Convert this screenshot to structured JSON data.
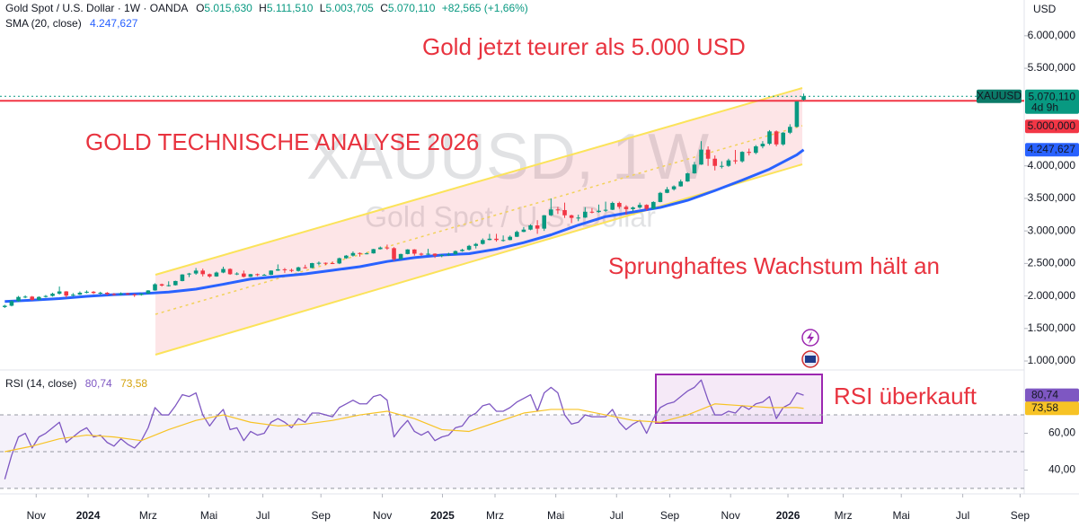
{
  "chart_data": {
    "type": "candlestick",
    "header": {
      "symbol": "Gold Spot / U.S. Dollar · 1W · OANDA",
      "ohlc": [
        {
          "key": "O",
          "value": "5.015,630"
        },
        {
          "key": "H",
          "value": "5.111,510"
        },
        {
          "key": "L",
          "value": "5.003,705"
        },
        {
          "key": "C",
          "value": "5.070,110"
        }
      ],
      "change": "+82,565 (+1,66%)"
    },
    "currency": "USD",
    "watermark": [
      "XAUUSD, 1W",
      "Gold Spot / U.S. Dollar"
    ],
    "annotations": [
      "Gold jetzt teurer als 5.000 USD",
      "GOLD TECHNISCHE ANALYSE 2026",
      "Sprunghaftes Wachstum hält an",
      "RSI überkauft"
    ],
    "up_color": "#089981",
    "down_color": "#f23645",
    "candles": [
      [
        1830,
        1865,
        1815,
        1850
      ],
      [
        1850,
        1935,
        1840,
        1920
      ],
      [
        1920,
        2000,
        1910,
        1985
      ],
      [
        1985,
        2010,
        1965,
        1990
      ],
      [
        1990,
        2000,
        1930,
        1940
      ],
      [
        1940,
        1995,
        1930,
        1985
      ],
      [
        1985,
        2015,
        1975,
        2000
      ],
      [
        2000,
        2050,
        1990,
        2035
      ],
      [
        2035,
        2145,
        2020,
        2070
      ],
      [
        2070,
        2075,
        1975,
        2005
      ],
      [
        2005,
        2045,
        1995,
        2020
      ],
      [
        2020,
        2070,
        2015,
        2050
      ],
      [
        2050,
        2085,
        2040,
        2065
      ],
      [
        2065,
        2075,
        2030,
        2045
      ],
      [
        2045,
        2065,
        2015,
        2050
      ],
      [
        2050,
        2060,
        2010,
        2030
      ],
      [
        2030,
        2045,
        2005,
        2020
      ],
      [
        2020,
        2055,
        2010,
        2040
      ],
      [
        2040,
        2050,
        2015,
        2025
      ],
      [
        2025,
        2035,
        1985,
        2015
      ],
      [
        2015,
        2045,
        2005,
        2035
      ],
      [
        2035,
        2090,
        2030,
        2085
      ],
      [
        2085,
        2195,
        2080,
        2180
      ],
      [
        2180,
        2190,
        2145,
        2160
      ],
      [
        2160,
        2225,
        2145,
        2165
      ],
      [
        2165,
        2235,
        2160,
        2230
      ],
      [
        2230,
        2335,
        2225,
        2330
      ],
      [
        2330,
        2355,
        2290,
        2345
      ],
      [
        2345,
        2430,
        2325,
        2390
      ],
      [
        2390,
        2420,
        2300,
        2335
      ],
      [
        2335,
        2345,
        2280,
        2300
      ],
      [
        2300,
        2375,
        2295,
        2360
      ],
      [
        2360,
        2450,
        2350,
        2415
      ],
      [
        2415,
        2425,
        2325,
        2335
      ],
      [
        2335,
        2365,
        2320,
        2345
      ],
      [
        2345,
        2390,
        2285,
        2295
      ],
      [
        2295,
        2340,
        2290,
        2335
      ],
      [
        2335,
        2345,
        2305,
        2320
      ],
      [
        2320,
        2340,
        2315,
        2325
      ],
      [
        2325,
        2395,
        2320,
        2390
      ],
      [
        2390,
        2485,
        2385,
        2410
      ],
      [
        2410,
        2430,
        2355,
        2400
      ],
      [
        2400,
        2420,
        2365,
        2385
      ],
      [
        2385,
        2450,
        2375,
        2440
      ],
      [
        2440,
        2480,
        2420,
        2430
      ],
      [
        2430,
        2510,
        2425,
        2505
      ],
      [
        2505,
        2530,
        2470,
        2510
      ],
      [
        2510,
        2515,
        2475,
        2505
      ],
      [
        2505,
        2530,
        2490,
        2500
      ],
      [
        2500,
        2590,
        2490,
        2580
      ],
      [
        2580,
        2630,
        2570,
        2620
      ],
      [
        2620,
        2685,
        2605,
        2660
      ],
      [
        2660,
        2670,
        2605,
        2655
      ],
      [
        2655,
        2670,
        2640,
        2655
      ],
      [
        2655,
        2725,
        2650,
        2720
      ],
      [
        2720,
        2760,
        2715,
        2745
      ],
      [
        2745,
        2790,
        2710,
        2735
      ],
      [
        2735,
        2750,
        2540,
        2565
      ],
      [
        2565,
        2650,
        2560,
        2645
      ],
      [
        2645,
        2720,
        2640,
        2715
      ],
      [
        2715,
        2720,
        2620,
        2650
      ],
      [
        2650,
        2665,
        2615,
        2635
      ],
      [
        2635,
        2725,
        2630,
        2650
      ],
      [
        2650,
        2655,
        2585,
        2620
      ],
      [
        2620,
        2640,
        2595,
        2630
      ],
      [
        2630,
        2665,
        2615,
        2640
      ],
      [
        2640,
        2700,
        2635,
        2690
      ],
      [
        2690,
        2725,
        2680,
        2710
      ],
      [
        2710,
        2785,
        2700,
        2770
      ],
      [
        2770,
        2815,
        2730,
        2800
      ],
      [
        2800,
        2885,
        2790,
        2860
      ],
      [
        2860,
        2955,
        2855,
        2880
      ],
      [
        2880,
        2955,
        2835,
        2860
      ],
      [
        2860,
        2930,
        2835,
        2860
      ],
      [
        2860,
        2930,
        2855,
        2910
      ],
      [
        2910,
        3005,
        2905,
        2985
      ],
      [
        2985,
        3060,
        2980,
        3020
      ],
      [
        3020,
        3100,
        3010,
        3085
      ],
      [
        3085,
        3165,
        2955,
        3035
      ],
      [
        3035,
        3245,
        3000,
        3240
      ],
      [
        3240,
        3500,
        3230,
        3330
      ],
      [
        3330,
        3370,
        3260,
        3320
      ],
      [
        3320,
        3435,
        3200,
        3240
      ],
      [
        3240,
        3250,
        3120,
        3200
      ],
      [
        3200,
        3250,
        3150,
        3205
      ],
      [
        3205,
        3365,
        3200,
        3295
      ],
      [
        3295,
        3350,
        3270,
        3290
      ],
      [
        3290,
        3405,
        3280,
        3310
      ],
      [
        3310,
        3450,
        3290,
        3325
      ],
      [
        3325,
        3450,
        3320,
        3430
      ],
      [
        3430,
        3450,
        3340,
        3370
      ],
      [
        3370,
        3395,
        3250,
        3335
      ],
      [
        3335,
        3375,
        3300,
        3360
      ],
      [
        3360,
        3435,
        3340,
        3400
      ],
      [
        3400,
        3410,
        3310,
        3340
      ],
      [
        3340,
        3455,
        3335,
        3445
      ],
      [
        3445,
        3600,
        3440,
        3585
      ],
      [
        3585,
        3675,
        3580,
        3640
      ],
      [
        3640,
        3700,
        3620,
        3685
      ],
      [
        3685,
        3790,
        3680,
        3760
      ],
      [
        3760,
        3895,
        3755,
        3885
      ],
      [
        3885,
        4060,
        3880,
        4020
      ],
      [
        4020,
        4380,
        4015,
        4250
      ],
      [
        4250,
        4300,
        4000,
        4110
      ],
      [
        4110,
        4160,
        3930,
        4000
      ],
      [
        4000,
        4070,
        3960,
        4000
      ],
      [
        4000,
        4110,
        3985,
        4085
      ],
      [
        4085,
        4245,
        4030,
        4070
      ],
      [
        4070,
        4225,
        4050,
        4215
      ],
      [
        4215,
        4265,
        4160,
        4200
      ],
      [
        4200,
        4320,
        4180,
        4300
      ],
      [
        4300,
        4380,
        4270,
        4340
      ],
      [
        4340,
        4550,
        4320,
        4530
      ],
      [
        4530,
        4545,
        4300,
        4330
      ],
      [
        4330,
        4520,
        4310,
        4510
      ],
      [
        4510,
        4640,
        4490,
        4600
      ],
      [
        4600,
        4990,
        4590,
        4990
      ],
      [
        5015.63,
        5111.51,
        5003.705,
        5070.11
      ]
    ],
    "xlim": [
      -0.7,
      149.3
    ],
    "xticks": [
      {
        "value": 4.6,
        "label": "Nov"
      },
      {
        "value": 12.2,
        "label": "2024"
      },
      {
        "value": 21,
        "label": "Mrz"
      },
      {
        "value": 29.9,
        "label": "Mai"
      },
      {
        "value": 37.8,
        "label": "Jul"
      },
      {
        "value": 46.3,
        "label": "Sep"
      },
      {
        "value": 55.3,
        "label": "Nov"
      },
      {
        "value": 64.1,
        "label": "2025"
      },
      {
        "value": 71.8,
        "label": "Mrz"
      },
      {
        "value": 80.7,
        "label": "Mai"
      },
      {
        "value": 89.6,
        "label": "Jul"
      },
      {
        "value": 97.4,
        "label": "Sep"
      },
      {
        "value": 106.3,
        "label": "Nov"
      },
      {
        "value": 114.7,
        "label": "2026"
      },
      {
        "value": 122.8,
        "label": "Mrz"
      },
      {
        "value": 131.3,
        "label": "Mai"
      },
      {
        "value": 140.3,
        "label": "Jul"
      },
      {
        "value": 148.7,
        "label": "Sep"
      }
    ],
    "ylim": [
      890,
      6550
    ],
    "yticks": [
      {
        "value": 6000,
        "label": "6.000,000"
      },
      {
        "value": 5500,
        "label": "5.500,000"
      },
      {
        "value": 4000,
        "label": "4.000,000"
      },
      {
        "value": 3500,
        "label": "3.500,000"
      },
      {
        "value": 3000,
        "label": "3.000,000"
      },
      {
        "value": 2500,
        "label": "2.500,000"
      },
      {
        "value": 2000,
        "label": "2.000,000"
      },
      {
        "value": 1500,
        "label": "1.500,000"
      },
      {
        "value": 1000,
        "label": "1.000,000"
      }
    ],
    "grid": false,
    "series": [
      {
        "name": "SMA (20, close)",
        "color": "#2962ff",
        "last_label": "4.247,627",
        "x": [
          0,
          4,
          8,
          12,
          16,
          20,
          24,
          28,
          32,
          36,
          40,
          44,
          48,
          52,
          56,
          60,
          64,
          68,
          72,
          76,
          80,
          84,
          88,
          92,
          96,
          100,
          104,
          108,
          112,
          116,
          117
        ],
        "values": [
          1915,
          1935,
          1960,
          1995,
          2020,
          2035,
          2060,
          2105,
          2180,
          2260,
          2300,
          2340,
          2395,
          2450,
          2530,
          2590,
          2630,
          2650,
          2720,
          2820,
          2940,
          3090,
          3220,
          3290,
          3360,
          3470,
          3620,
          3780,
          3950,
          4170,
          4247.627
        ]
      }
    ],
    "price_line": {
      "name": "XAUUSD",
      "value": 5070.11,
      "label": "5.070,110",
      "countdown": "4d 9h",
      "color": "#089981"
    },
    "level": {
      "value": 5000,
      "label": "5.000,000",
      "color": "#f23645"
    },
    "rsi": {
      "title": "RSI (14, close)",
      "ylim": [
        28,
        93
      ],
      "yticks": [
        {
          "value": 60,
          "label": "60,00"
        },
        {
          "value": 40,
          "label": "40,00"
        }
      ],
      "levels": [
        70,
        50,
        30
      ],
      "series": [
        {
          "color": "#7e57c2",
          "label": "80,74",
          "values": [
            35,
            48,
            58,
            60,
            52,
            58,
            60,
            63,
            66,
            55,
            58,
            61,
            63,
            58,
            59,
            55,
            53,
            57,
            54,
            52,
            56,
            63,
            74,
            70,
            70,
            75,
            81,
            80,
            82,
            70,
            64,
            69,
            73,
            62,
            63,
            56,
            61,
            59,
            60,
            66,
            68,
            66,
            63,
            68,
            66,
            71,
            71,
            70,
            69,
            74,
            76,
            78,
            76,
            76,
            80,
            81,
            78,
            58,
            63,
            67,
            61,
            59,
            61,
            56,
            58,
            59,
            63,
            64,
            69,
            71,
            75,
            76,
            72,
            72,
            74,
            77,
            79,
            81,
            72,
            82,
            85,
            82,
            70,
            65,
            66,
            70,
            69,
            69,
            69,
            73,
            66,
            62,
            65,
            67,
            60,
            68,
            74,
            76,
            77,
            80,
            83,
            85,
            89,
            78,
            70,
            70,
            72,
            71,
            75,
            73,
            76,
            77,
            80,
            68,
            74,
            76,
            82,
            80.74
          ]
        },
        {
          "color": "#f7c325",
          "label": "73,58",
          "x": [
            0,
            4,
            8,
            12,
            16,
            20,
            24,
            28,
            32,
            36,
            40,
            44,
            48,
            52,
            56,
            60,
            64,
            68,
            72,
            76,
            80,
            84,
            88,
            92,
            96,
            100,
            104,
            108,
            112,
            116,
            117
          ],
          "values": [
            50,
            53,
            57,
            59,
            58,
            56,
            62,
            67,
            70,
            66,
            64,
            65,
            67,
            70,
            72,
            68,
            62,
            61,
            66,
            71,
            73,
            73,
            70,
            67,
            66,
            70,
            76,
            75,
            74,
            74,
            73.58
          ]
        }
      ]
    }
  }
}
